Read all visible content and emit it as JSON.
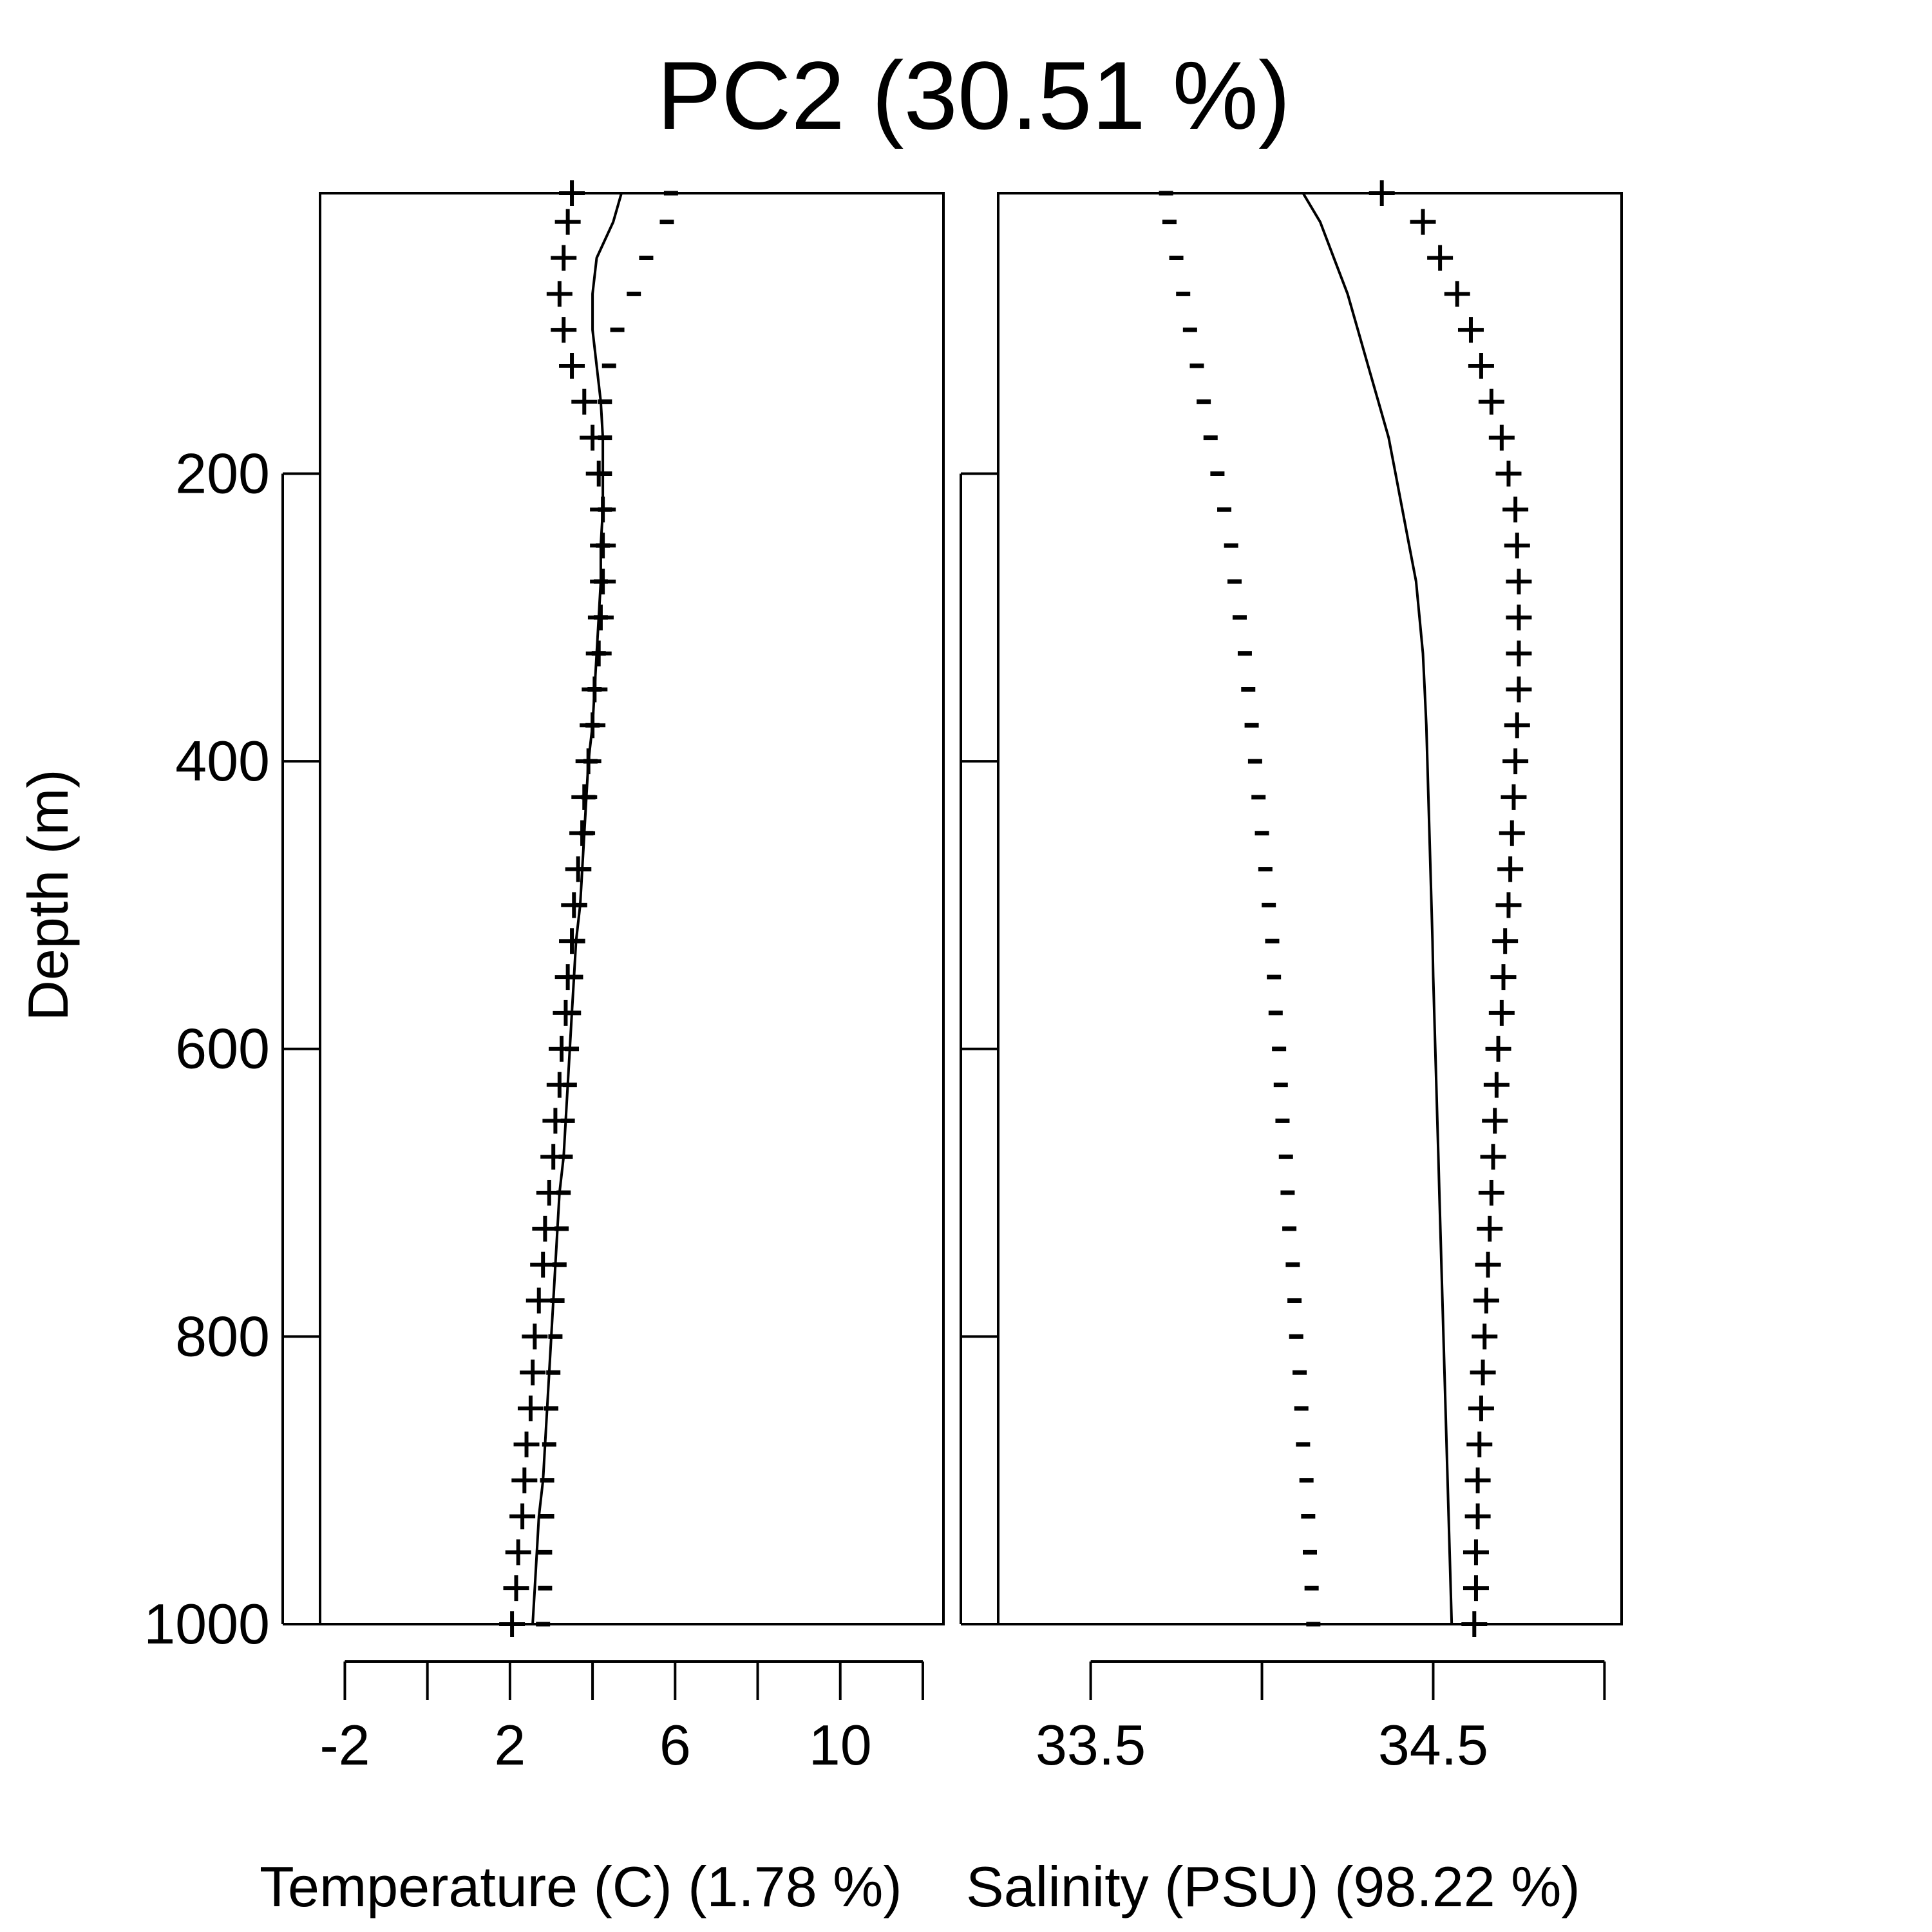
{
  "chart_data": {
    "title": "PC2 (30.51 %)",
    "ylabel": "Depth (m)",
    "y_ticks": [
      200,
      400,
      600,
      800,
      1000
    ],
    "panels": [
      {
        "type": "line",
        "xlabel": "Temperature (C) (1.78 %)",
        "xlim": [
          -2.6,
          12.5
        ],
        "x_ticks": [
          -2,
          0,
          2,
          4,
          6,
          8,
          10,
          12
        ],
        "x_tick_labels": [
          "-2",
          "",
          "2",
          "",
          "6",
          "",
          "10",
          ""
        ],
        "ylim": [
          1000,
          5
        ],
        "depths": [
          5,
          25,
          50,
          75,
          100,
          125,
          150,
          175,
          200,
          225,
          250,
          275,
          300,
          325,
          350,
          375,
          400,
          425,
          450,
          475,
          500,
          525,
          550,
          575,
          600,
          625,
          650,
          675,
          700,
          725,
          750,
          775,
          800,
          825,
          850,
          875,
          900,
          925,
          950,
          975,
          1000
        ],
        "series": [
          {
            "name": "",
            "style": "line",
            "values": [
              4.7,
              4.5,
              4.1,
              4.0,
              4.0,
              4.1,
              4.2,
              4.25,
              4.25,
              4.25,
              4.2,
              4.2,
              4.15,
              4.1,
              4.05,
              4.0,
              3.9,
              3.85,
              3.8,
              3.75,
              3.7,
              3.6,
              3.55,
              3.5,
              3.45,
              3.4,
              3.35,
              3.3,
              3.2,
              3.15,
              3.1,
              3.05,
              3.0,
              2.95,
              2.9,
              2.85,
              2.8,
              2.7,
              2.65,
              2.6,
              2.55
            ]
          },
          {
            "name": "+",
            "style": "plus",
            "values": [
              3.5,
              3.4,
              3.3,
              3.2,
              3.3,
              3.5,
              3.8,
              4.0,
              4.15,
              4.25,
              4.25,
              4.25,
              4.2,
              4.15,
              4.05,
              4.0,
              3.9,
              3.8,
              3.75,
              3.65,
              3.55,
              3.5,
              3.4,
              3.35,
              3.25,
              3.2,
              3.1,
              3.05,
              2.95,
              2.85,
              2.8,
              2.7,
              2.6,
              2.55,
              2.5,
              2.4,
              2.35,
              2.3,
              2.2,
              2.15,
              2.05
            ]
          },
          {
            "name": "-",
            "style": "minus",
            "values": [
              5.9,
              5.8,
              5.3,
              5.0,
              4.6,
              4.4,
              4.3,
              4.3,
              4.3,
              4.3,
              4.25,
              4.2,
              4.2,
              4.15,
              4.05,
              4.0,
              3.95,
              3.9,
              3.85,
              3.8,
              3.7,
              3.65,
              3.6,
              3.55,
              3.5,
              3.45,
              3.4,
              3.35,
              3.3,
              3.25,
              3.2,
              3.15,
              3.1,
              3.05,
              3.0,
              2.95,
              2.9,
              2.9,
              2.85,
              2.85,
              2.8
            ]
          }
        ]
      },
      {
        "type": "line",
        "xlabel": "Salinity (PSU) (98.22 %)",
        "xlim": [
          33.23,
          35.05
        ],
        "x_ticks": [
          33.5,
          34.0,
          34.5,
          35.0
        ],
        "x_tick_labels": [
          "33.5",
          "",
          "34.5",
          ""
        ],
        "ylim": [
          1000,
          5
        ],
        "depths": [
          5,
          25,
          50,
          75,
          100,
          125,
          150,
          175,
          200,
          225,
          250,
          275,
          300,
          325,
          350,
          375,
          400,
          425,
          450,
          475,
          500,
          525,
          550,
          575,
          600,
          625,
          650,
          675,
          700,
          725,
          750,
          775,
          800,
          825,
          850,
          875,
          900,
          925,
          950,
          975,
          1000
        ],
        "series": [
          {
            "name": "",
            "style": "line",
            "values": [
              34.12,
              34.17,
              34.21,
              34.25,
              34.28,
              34.31,
              34.34,
              34.37,
              34.39,
              34.41,
              34.43,
              34.45,
              34.46,
              34.47,
              34.475,
              34.48,
              34.483,
              34.486,
              34.489,
              34.492,
              34.495,
              34.498,
              34.5,
              34.503,
              34.506,
              34.509,
              34.512,
              34.515,
              34.518,
              34.521,
              34.524,
              34.527,
              34.53,
              34.533,
              34.536,
              34.539,
              34.542,
              34.545,
              34.548,
              34.551,
              34.554
            ]
          },
          {
            "name": "+",
            "style": "plus",
            "values": [
              34.35,
              34.47,
              34.52,
              34.57,
              34.61,
              34.64,
              34.67,
              34.7,
              34.72,
              34.74,
              34.745,
              34.75,
              34.75,
              34.75,
              34.75,
              34.745,
              34.74,
              34.735,
              34.73,
              34.725,
              34.72,
              34.71,
              34.705,
              34.7,
              34.69,
              34.685,
              34.68,
              34.675,
              34.67,
              34.665,
              34.66,
              34.655,
              34.65,
              34.645,
              34.64,
              34.635,
              34.63,
              34.63,
              34.625,
              34.625,
              34.62
            ]
          },
          {
            "name": "-",
            "style": "minus",
            "values": [
              33.72,
              33.73,
              33.75,
              33.77,
              33.79,
              33.81,
              33.83,
              33.85,
              33.87,
              33.89,
              33.91,
              33.92,
              33.935,
              33.95,
              33.96,
              33.97,
              33.98,
              33.99,
              34.0,
              34.01,
              34.02,
              34.03,
              34.035,
              34.04,
              34.05,
              34.055,
              34.06,
              34.07,
              34.075,
              34.08,
              34.09,
              34.095,
              34.1,
              34.11,
              34.115,
              34.12,
              34.13,
              34.135,
              34.14,
              34.145,
              34.15
            ]
          }
        ]
      }
    ]
  }
}
